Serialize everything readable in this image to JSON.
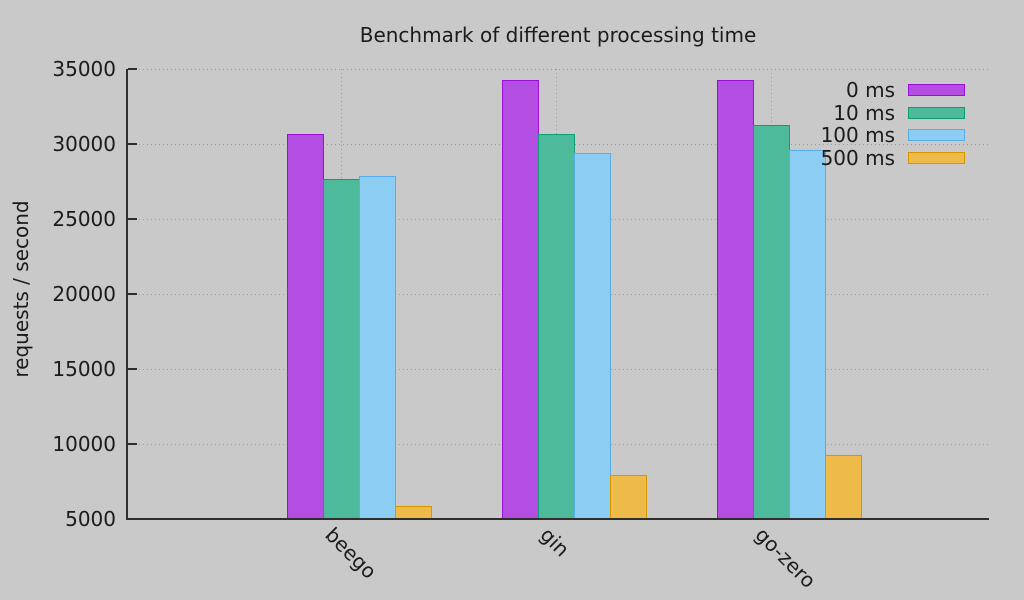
{
  "chart_data": {
    "type": "bar",
    "title": "Benchmark of different processing time",
    "ylabel": "requests / second",
    "xlabel": "",
    "categories": [
      "beego",
      "gin",
      "go-zero"
    ],
    "series": [
      {
        "name": "0 ms",
        "color": "#b44de1",
        "border": "#9c0fdb",
        "values": [
          30700,
          34300,
          34250
        ]
      },
      {
        "name": "10 ms",
        "color": "#4dbb9b",
        "border": "#0d9e74",
        "values": [
          27700,
          30700,
          31250
        ]
      },
      {
        "name": "100 ms",
        "color": "#8ccdf4",
        "border": "#58aee8",
        "values": [
          27900,
          29400,
          29600
        ]
      },
      {
        "name": "500 ms",
        "color": "#eebb4b",
        "border": "#d89500",
        "values": [
          5870,
          7930,
          9250
        ]
      }
    ],
    "ylim": [
      5000,
      35000
    ],
    "y_ticks": [
      5000,
      10000,
      15000,
      20000,
      25000,
      30000,
      35000
    ],
    "grid": true,
    "legend_position": "top-right",
    "background": "#c9c9c9",
    "text_color": "#1b1b1b"
  }
}
